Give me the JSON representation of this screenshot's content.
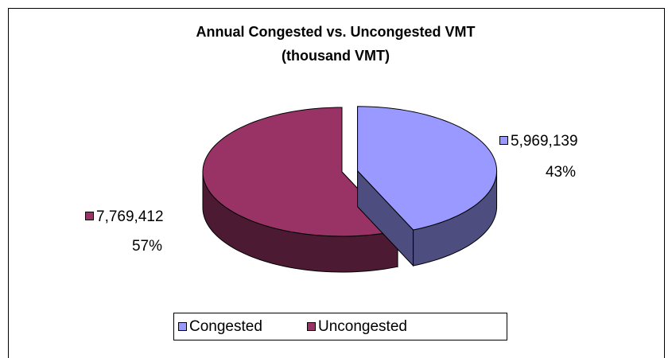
{
  "chart_data": {
    "type": "pie",
    "title": "Annual Congested vs. Unconguested VMT",
    "subtitle": "(thousand VMT)",
    "categories": [
      "Congested",
      "Uncongested"
    ],
    "values": [
      5969139,
      7769412
    ],
    "value_labels": [
      "5,969,139",
      "7,769,412"
    ],
    "percent_labels": [
      "43%",
      "57%"
    ],
    "colors": [
      "#9999ff",
      "#993366"
    ],
    "side_colors": [
      "#4d4d80",
      "#4d1a33"
    ],
    "exploded": [
      true,
      false
    ],
    "legend": "bottom"
  }
}
